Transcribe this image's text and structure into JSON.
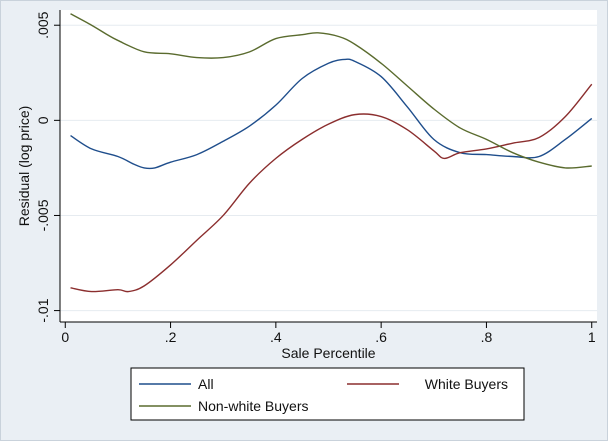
{
  "chart_data": {
    "type": "line",
    "xlabel": "Sale Percentile",
    "ylabel": "Residual (log price)",
    "xlim": [
      -0.01,
      1.01
    ],
    "ylim": [
      -0.0106,
      0.0058
    ],
    "xticks": [
      {
        "value": 0,
        "label": "0"
      },
      {
        "value": 0.2,
        "label": ".2"
      },
      {
        "value": 0.4,
        "label": ".4"
      },
      {
        "value": 0.6,
        "label": ".6"
      },
      {
        "value": 0.8,
        "label": ".8"
      },
      {
        "value": 1,
        "label": "1"
      }
    ],
    "yticks": [
      {
        "value": 0.005,
        "label": ".005"
      },
      {
        "value": 0,
        "label": "0"
      },
      {
        "value": -0.005,
        "label": "-.005"
      },
      {
        "value": -0.01,
        "label": "-.01"
      }
    ],
    "grid": true,
    "legend_position": "bottom",
    "series": [
      {
        "name": "All",
        "color": "#1f4e8c",
        "x": [
          0.01,
          0.05,
          0.1,
          0.13,
          0.15,
          0.17,
          0.2,
          0.25,
          0.3,
          0.35,
          0.4,
          0.45,
          0.5,
          0.53,
          0.55,
          0.6,
          0.65,
          0.7,
          0.75,
          0.8,
          0.85,
          0.9,
          0.95,
          1.0
        ],
        "y": [
          -0.0008,
          -0.0015,
          -0.0019,
          -0.0023,
          -0.0025,
          -0.0025,
          -0.0022,
          -0.0018,
          -0.0011,
          -0.0003,
          0.0008,
          0.0022,
          0.003,
          0.0032,
          0.0031,
          0.0023,
          0.0007,
          -0.001,
          -0.0017,
          -0.0018,
          -0.0019,
          -0.0019,
          -0.001,
          0.0001
        ]
      },
      {
        "name": "White Buyers",
        "color": "#8b2e2e",
        "x": [
          0.01,
          0.05,
          0.1,
          0.12,
          0.15,
          0.2,
          0.25,
          0.3,
          0.35,
          0.4,
          0.45,
          0.5,
          0.55,
          0.6,
          0.65,
          0.7,
          0.72,
          0.75,
          0.8,
          0.85,
          0.9,
          0.95,
          1.0
        ],
        "y": [
          -0.0088,
          -0.009,
          -0.0089,
          -0.009,
          -0.0087,
          -0.0076,
          -0.0063,
          -0.005,
          -0.0033,
          -0.002,
          -0.001,
          -0.0002,
          0.0003,
          0.0002,
          -0.0005,
          -0.0016,
          -0.002,
          -0.0017,
          -0.0015,
          -0.0012,
          -0.0009,
          0.0002,
          0.0019
        ]
      },
      {
        "name": "Non-white Buyers",
        "color": "#5a6b2e",
        "x": [
          0.01,
          0.05,
          0.08,
          0.1,
          0.15,
          0.2,
          0.25,
          0.3,
          0.35,
          0.4,
          0.45,
          0.48,
          0.52,
          0.55,
          0.6,
          0.65,
          0.7,
          0.75,
          0.8,
          0.85,
          0.9,
          0.95,
          1.0
        ],
        "y": [
          0.0056,
          0.005,
          0.0045,
          0.0042,
          0.0036,
          0.0035,
          0.0033,
          0.0033,
          0.0036,
          0.0043,
          0.0045,
          0.0046,
          0.0044,
          0.004,
          0.003,
          0.0018,
          0.0006,
          -0.0004,
          -0.001,
          -0.0017,
          -0.0022,
          -0.0025,
          -0.0024
        ]
      }
    ]
  }
}
